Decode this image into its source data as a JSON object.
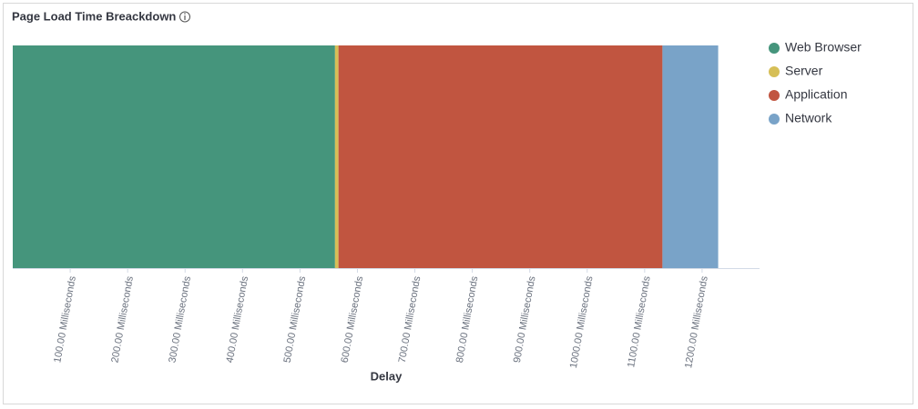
{
  "chart_data": {
    "type": "bar",
    "orientation": "horizontal",
    "stacked": true,
    "title": "Page Load Time Breackdown",
    "xlabel": "Delay",
    "series": [
      {
        "name": "Web Browser",
        "color": "#45957c",
        "values": [
          561
        ]
      },
      {
        "name": "Server",
        "color": "#d6bf57",
        "values": [
          6
        ]
      },
      {
        "name": "Application",
        "color": "#c15540",
        "values": [
          564
        ]
      },
      {
        "name": "Network",
        "color": "#79a3c8",
        "values": [
          97
        ]
      }
    ],
    "xlim": [
      0,
      1300
    ],
    "xticks": [
      {
        "value": 100,
        "label": "100.00 Milliseconds"
      },
      {
        "value": 200,
        "label": "200.00 Milliseconds"
      },
      {
        "value": 300,
        "label": "300.00 Milliseconds"
      },
      {
        "value": 400,
        "label": "400.00 Milliseconds"
      },
      {
        "value": 500,
        "label": "500.00 Milliseconds"
      },
      {
        "value": 600,
        "label": "600.00 Milliseconds"
      },
      {
        "value": 700,
        "label": "700.00 Milliseconds"
      },
      {
        "value": 800,
        "label": "800.00 Milliseconds"
      },
      {
        "value": 900,
        "label": "900.00 Milliseconds"
      },
      {
        "value": 1000,
        "label": "1000.00 Milliseconds"
      },
      {
        "value": 1100,
        "label": "1100.00 Milliseconds"
      },
      {
        "value": 1200,
        "label": "1200.00 Milliseconds"
      }
    ],
    "grid": false,
    "legend": "right"
  }
}
